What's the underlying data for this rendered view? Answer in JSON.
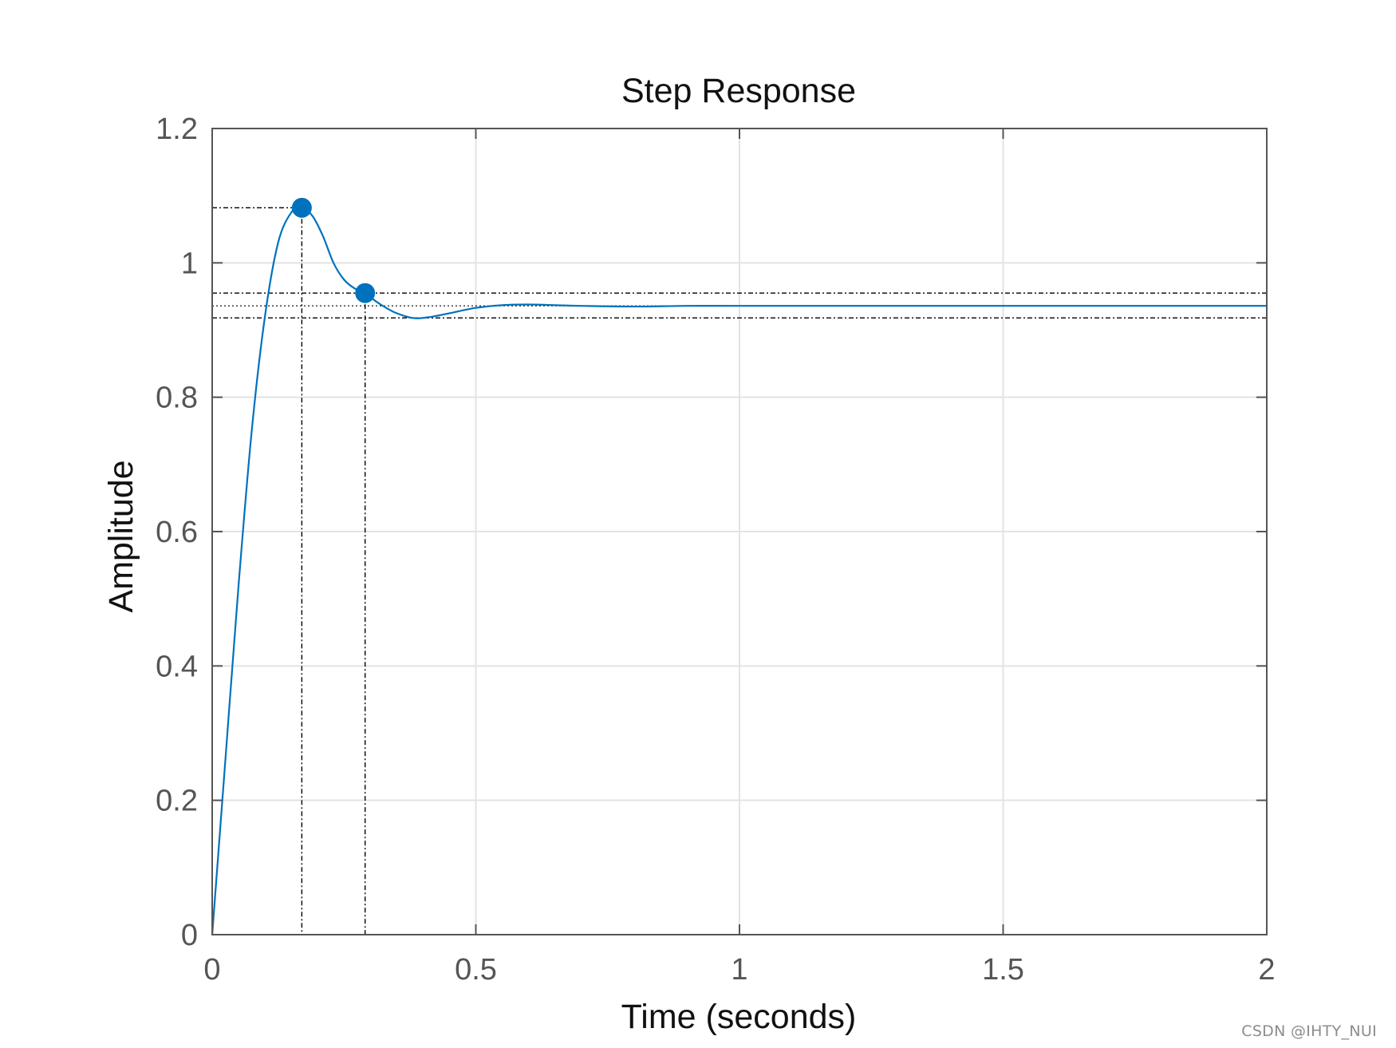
{
  "chart_data": {
    "type": "line",
    "title": "Step Response",
    "xlabel": "Time (seconds)",
    "ylabel": "Amplitude",
    "xlim": [
      0,
      2
    ],
    "ylim": [
      0,
      1.2
    ],
    "xticks": [
      0,
      0.5,
      1,
      1.5,
      2
    ],
    "xtick_labels": [
      "0",
      "0.5",
      "1",
      "1.5",
      "2"
    ],
    "yticks": [
      0,
      0.2,
      0.4,
      0.6,
      0.8,
      1,
      1.2
    ],
    "ytick_labels": [
      "0",
      "0.2",
      "0.4",
      "0.6",
      "0.8",
      "1",
      "1.2"
    ],
    "grid": true,
    "series": [
      {
        "color": "#0072BD",
        "x": [
          0,
          0.025,
          0.05,
          0.075,
          0.1,
          0.125,
          0.15,
          0.17,
          0.19,
          0.21,
          0.23,
          0.25,
          0.27,
          0.29,
          0.31,
          0.33,
          0.35,
          0.38,
          0.41,
          0.45,
          0.5,
          0.55,
          0.6,
          0.65,
          0.7,
          0.8,
          0.9,
          1.0,
          1.2,
          1.5,
          2.0
        ],
        "y": [
          0,
          0.26,
          0.52,
          0.75,
          0.92,
          1.03,
          1.075,
          1.082,
          1.07,
          1.04,
          1.0,
          0.975,
          0.962,
          0.955,
          0.943,
          0.933,
          0.925,
          0.918,
          0.919,
          0.925,
          0.933,
          0.937,
          0.938,
          0.937,
          0.936,
          0.935,
          0.936,
          0.936,
          0.936,
          0.936,
          0.936
        ]
      }
    ],
    "final_value": 0.936,
    "settling_band": [
      0.918,
      0.955
    ],
    "markers": [
      {
        "x": 0.17,
        "y": 1.082
      },
      {
        "x": 0.29,
        "y": 0.955
      }
    ],
    "colors": {
      "line": "#0072BD",
      "marker": "#0072BD",
      "grid": "#e3e3e3",
      "axes": "#555555",
      "guides": "#000000"
    }
  },
  "watermark": "CSDN @IHTY_NUI"
}
